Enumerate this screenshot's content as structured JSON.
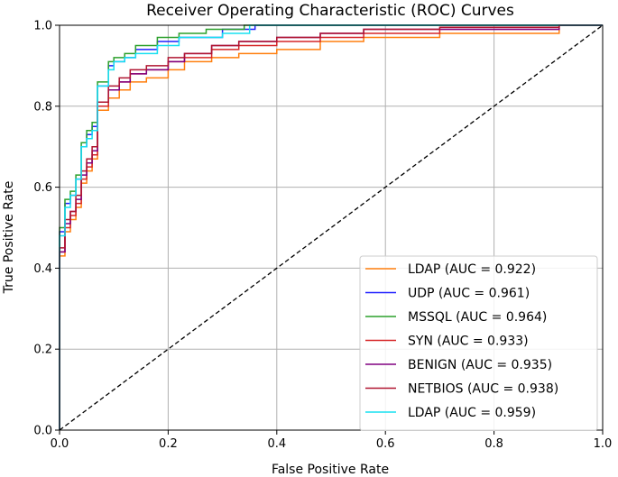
{
  "chart_data": {
    "type": "line",
    "title": "Receiver Operating Characteristic (ROC) Curves",
    "xlabel": "False Positive Rate",
    "ylabel": "True Positive Rate",
    "xlim": [
      0,
      1
    ],
    "ylim": [
      0,
      1
    ],
    "xticks": [
      "0.0",
      "0.2",
      "0.4",
      "0.6",
      "0.8",
      "1.0"
    ],
    "yticks": [
      "0.0",
      "0.2",
      "0.4",
      "0.6",
      "0.8",
      "1.0"
    ],
    "grid": true,
    "legend_position": "bottom-right",
    "reference_line": {
      "name": "chance",
      "color": "#000000",
      "style": "dashed",
      "x": [
        0,
        1
      ],
      "y": [
        0,
        1
      ]
    },
    "series": [
      {
        "name": "LDAP (AUC = 0.922)",
        "color": "#ff7f0e",
        "x": [
          0,
          0,
          0.01,
          0.01,
          0.02,
          0.02,
          0.03,
          0.03,
          0.04,
          0.04,
          0.05,
          0.05,
          0.06,
          0.06,
          0.07,
          0.07,
          0.09,
          0.09,
          0.11,
          0.11,
          0.13,
          0.13,
          0.16,
          0.16,
          0.2,
          0.2,
          0.23,
          0.23,
          0.28,
          0.28,
          0.33,
          0.33,
          0.4,
          0.4,
          0.48,
          0.48,
          0.56,
          0.56,
          0.7,
          0.7,
          0.92,
          0.92,
          1.0
        ],
        "y": [
          0,
          0.43,
          0.43,
          0.49,
          0.49,
          0.52,
          0.52,
          0.55,
          0.55,
          0.61,
          0.61,
          0.64,
          0.64,
          0.67,
          0.67,
          0.79,
          0.79,
          0.82,
          0.82,
          0.84,
          0.84,
          0.86,
          0.86,
          0.87,
          0.87,
          0.89,
          0.89,
          0.91,
          0.91,
          0.92,
          0.92,
          0.93,
          0.93,
          0.94,
          0.94,
          0.96,
          0.96,
          0.97,
          0.97,
          0.98,
          0.98,
          1.0,
          1.0
        ]
      },
      {
        "name": "UDP (AUC = 0.961)",
        "color": "#1f1fff",
        "x": [
          0,
          0,
          0.01,
          0.01,
          0.02,
          0.02,
          0.03,
          0.03,
          0.04,
          0.04,
          0.05,
          0.05,
          0.06,
          0.06,
          0.07,
          0.07,
          0.09,
          0.09,
          0.1,
          0.1,
          0.12,
          0.12,
          0.14,
          0.14,
          0.18,
          0.18,
          0.22,
          0.22,
          0.3,
          0.3,
          0.36,
          0.36,
          1.0
        ],
        "y": [
          0,
          0.49,
          0.49,
          0.56,
          0.56,
          0.58,
          0.58,
          0.62,
          0.62,
          0.7,
          0.7,
          0.73,
          0.73,
          0.75,
          0.75,
          0.85,
          0.85,
          0.9,
          0.9,
          0.91,
          0.91,
          0.92,
          0.92,
          0.94,
          0.94,
          0.96,
          0.96,
          0.97,
          0.97,
          0.99,
          0.99,
          1.0,
          1.0
        ]
      },
      {
        "name": "MSSQL (AUC = 0.964)",
        "color": "#2ca02c",
        "x": [
          0,
          0,
          0.01,
          0.01,
          0.02,
          0.02,
          0.03,
          0.03,
          0.04,
          0.04,
          0.05,
          0.05,
          0.06,
          0.06,
          0.07,
          0.07,
          0.09,
          0.09,
          0.1,
          0.1,
          0.12,
          0.12,
          0.14,
          0.14,
          0.18,
          0.18,
          0.22,
          0.22,
          0.27,
          0.27,
          0.34,
          0.34,
          1.0
        ],
        "y": [
          0,
          0.5,
          0.5,
          0.57,
          0.57,
          0.59,
          0.59,
          0.63,
          0.63,
          0.71,
          0.71,
          0.74,
          0.74,
          0.76,
          0.76,
          0.86,
          0.86,
          0.91,
          0.91,
          0.92,
          0.92,
          0.93,
          0.93,
          0.95,
          0.95,
          0.97,
          0.97,
          0.98,
          0.98,
          0.99,
          0.99,
          1.0,
          1.0
        ]
      },
      {
        "name": "SYN (AUC = 0.933)",
        "color": "#d62728",
        "x": [
          0,
          0,
          0.01,
          0.01,
          0.02,
          0.02,
          0.03,
          0.03,
          0.04,
          0.04,
          0.05,
          0.05,
          0.06,
          0.06,
          0.07,
          0.07,
          0.09,
          0.09,
          0.11,
          0.11,
          0.13,
          0.13,
          0.16,
          0.16,
          0.2,
          0.2,
          0.23,
          0.23,
          0.28,
          0.28,
          0.33,
          0.33,
          0.4,
          0.4,
          0.48,
          0.48,
          0.56,
          0.56,
          0.7,
          0.7,
          0.92,
          0.92,
          1.0
        ],
        "y": [
          0,
          0.44,
          0.44,
          0.5,
          0.5,
          0.53,
          0.53,
          0.56,
          0.56,
          0.62,
          0.62,
          0.65,
          0.65,
          0.68,
          0.68,
          0.8,
          0.8,
          0.84,
          0.84,
          0.86,
          0.86,
          0.88,
          0.88,
          0.89,
          0.89,
          0.91,
          0.91,
          0.92,
          0.92,
          0.94,
          0.94,
          0.95,
          0.95,
          0.96,
          0.96,
          0.97,
          0.97,
          0.98,
          0.98,
          0.99,
          0.99,
          1.0,
          1.0
        ]
      },
      {
        "name": "BENIGN (AUC = 0.935)",
        "color": "#800080",
        "x": [
          0,
          0,
          0.01,
          0.01,
          0.02,
          0.02,
          0.03,
          0.03,
          0.04,
          0.04,
          0.05,
          0.05,
          0.06,
          0.06,
          0.07,
          0.07,
          0.09,
          0.09,
          0.11,
          0.11,
          0.13,
          0.13,
          0.16,
          0.16,
          0.2,
          0.2,
          0.23,
          0.23,
          0.28,
          0.28,
          0.33,
          0.33,
          0.4,
          0.4,
          0.48,
          0.48,
          0.56,
          0.56,
          0.7,
          0.7,
          0.92,
          0.92,
          1.0
        ],
        "y": [
          0,
          0.44,
          0.44,
          0.51,
          0.51,
          0.54,
          0.54,
          0.57,
          0.57,
          0.63,
          0.63,
          0.66,
          0.66,
          0.69,
          0.69,
          0.81,
          0.81,
          0.84,
          0.84,
          0.86,
          0.86,
          0.88,
          0.88,
          0.89,
          0.89,
          0.91,
          0.91,
          0.93,
          0.93,
          0.95,
          0.95,
          0.96,
          0.96,
          0.97,
          0.97,
          0.98,
          0.98,
          0.99,
          0.99,
          0.99,
          0.99,
          1.0,
          1.0
        ]
      },
      {
        "name": "NETBIOS (AUC = 0.938)",
        "color": "#b01530",
        "x": [
          0,
          0,
          0.01,
          0.01,
          0.02,
          0.02,
          0.03,
          0.03,
          0.04,
          0.04,
          0.05,
          0.05,
          0.06,
          0.06,
          0.07,
          0.07,
          0.09,
          0.09,
          0.11,
          0.11,
          0.13,
          0.13,
          0.16,
          0.16,
          0.2,
          0.2,
          0.23,
          0.23,
          0.28,
          0.28,
          0.33,
          0.33,
          0.4,
          0.4,
          0.48,
          0.48,
          0.56,
          0.56,
          0.7,
          0.7,
          0.92,
          0.92,
          1.0
        ],
        "y": [
          0,
          0.45,
          0.45,
          0.52,
          0.52,
          0.54,
          0.54,
          0.58,
          0.58,
          0.64,
          0.64,
          0.67,
          0.67,
          0.7,
          0.7,
          0.81,
          0.81,
          0.85,
          0.85,
          0.87,
          0.87,
          0.89,
          0.89,
          0.9,
          0.9,
          0.92,
          0.92,
          0.93,
          0.93,
          0.95,
          0.95,
          0.96,
          0.96,
          0.97,
          0.97,
          0.98,
          0.98,
          0.99,
          0.99,
          0.995,
          0.995,
          1.0,
          1.0
        ]
      },
      {
        "name": "LDAP (AUC = 0.959)",
        "color": "#17e0f0",
        "x": [
          0,
          0,
          0.01,
          0.01,
          0.02,
          0.02,
          0.03,
          0.03,
          0.04,
          0.04,
          0.05,
          0.05,
          0.06,
          0.06,
          0.07,
          0.07,
          0.09,
          0.09,
          0.1,
          0.1,
          0.12,
          0.12,
          0.14,
          0.14,
          0.18,
          0.18,
          0.22,
          0.22,
          0.3,
          0.3,
          0.35,
          0.35,
          1.0
        ],
        "y": [
          0,
          0.48,
          0.48,
          0.55,
          0.55,
          0.58,
          0.58,
          0.62,
          0.62,
          0.7,
          0.7,
          0.72,
          0.72,
          0.74,
          0.74,
          0.85,
          0.85,
          0.89,
          0.89,
          0.91,
          0.91,
          0.92,
          0.92,
          0.93,
          0.93,
          0.95,
          0.95,
          0.97,
          0.97,
          0.98,
          0.98,
          1.0,
          1.0
        ]
      }
    ]
  }
}
